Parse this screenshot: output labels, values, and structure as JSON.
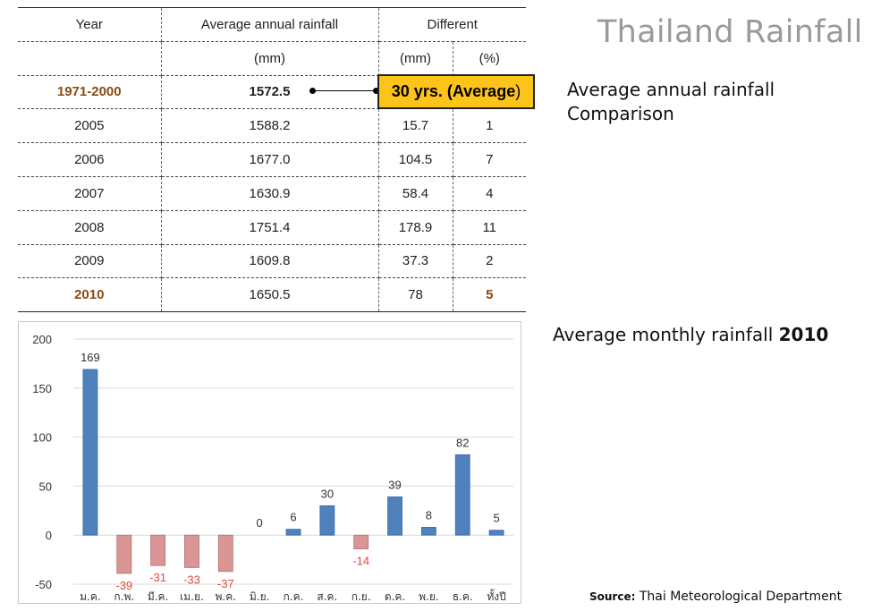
{
  "title": "Thailand Rainfall",
  "table": {
    "headers": {
      "year": "Year",
      "average": "Average annual rainfall",
      "different": "Different",
      "unit_avg": "(mm)",
      "unit_mm": "(mm)",
      "unit_pct": "(%)"
    },
    "baseline": {
      "year": "1971-2000",
      "value": "1572.5"
    },
    "rows": [
      {
        "year": "2005",
        "value": "1588.2",
        "diff_mm": "15.7",
        "diff_pct": "1"
      },
      {
        "year": "2006",
        "value": "1677.0",
        "diff_mm": "104.5",
        "diff_pct": "7"
      },
      {
        "year": "2007",
        "value": "1630.9",
        "diff_mm": "58.4",
        "diff_pct": "4"
      },
      {
        "year": "2008",
        "value": "1751.4",
        "diff_mm": "178.9",
        "diff_pct": "11"
      },
      {
        "year": "2009",
        "value": "1609.8",
        "diff_mm": "37.3",
        "diff_pct": "2"
      },
      {
        "year": "2010",
        "value": "1650.5",
        "diff_mm": "78",
        "diff_pct": "5"
      }
    ],
    "callout": {
      "main": "30 yrs. (",
      "emph": "Average",
      "close": ")"
    }
  },
  "comparison_note": {
    "line1": "Average annual rainfall",
    "line2": "Comparison"
  },
  "monthly_heading": {
    "text": "Average monthly rainfall ",
    "year": "2010"
  },
  "source": {
    "label": "Source:",
    "text": " Thai Meteorological Department"
  },
  "colors": {
    "positive": "#4f81bd",
    "negative": "#d99694",
    "negative_label": "#e04a3a",
    "highlight": "#fcc419",
    "brown": "#8b4a12"
  },
  "chart_data": {
    "type": "bar",
    "categories": [
      "ม.ค.",
      "ก.พ.",
      "มี.ค.",
      "เม.ย.",
      "พ.ค.",
      "มิ.ย.",
      "ก.ค.",
      "ส.ค.",
      "ก.ย.",
      "ต.ค.",
      "พ.ย.",
      "ธ.ค.",
      "ทั้งปี"
    ],
    "values": [
      169,
      -39,
      -31,
      -33,
      -37,
      0,
      6,
      30,
      -14,
      39,
      8,
      82,
      5
    ],
    "ylim": [
      -50,
      200
    ],
    "yticks": [
      200,
      150,
      100,
      50,
      0,
      -50
    ],
    "grid": true,
    "title": "",
    "xlabel": "",
    "ylabel": ""
  }
}
